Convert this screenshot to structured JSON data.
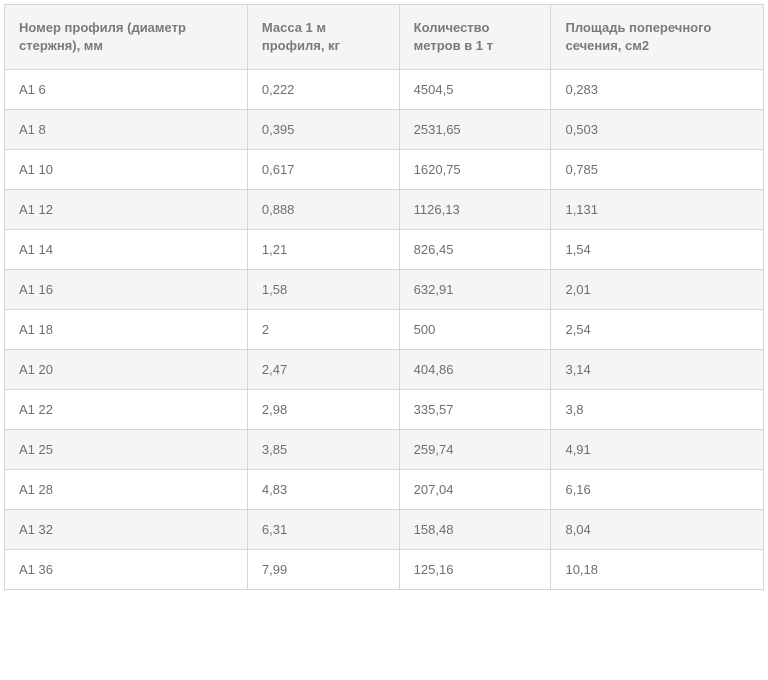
{
  "table": {
    "type": "table",
    "header_bg": "#f5f5f5",
    "row_bg_odd": "#ffffff",
    "row_bg_even": "#f5f5f5",
    "border_color": "#d6d6d6",
    "text_color": "#6f6f6f",
    "header_text_color": "#7a7a7a",
    "font_size": 13,
    "header_font_size": 13,
    "column_widths_pct": [
      32,
      20,
      20,
      28
    ],
    "columns": [
      "Номер профиля (диаметр стержня), мм",
      "Масса 1 м профиля, кг",
      "Количество метров в 1 т",
      "Площадь поперечного сечения, см2"
    ],
    "rows": [
      [
        "А1 6",
        "0,222",
        "4504,5",
        "0,283"
      ],
      [
        "А1 8",
        "0,395",
        "2531,65",
        "0,503"
      ],
      [
        "А1 10",
        "0,617",
        "1620,75",
        "0,785"
      ],
      [
        "А1 12",
        "0,888",
        "1126,13",
        "1,131"
      ],
      [
        "А1 14",
        "1,21",
        "826,45",
        "1,54"
      ],
      [
        "А1 16",
        "1,58",
        "632,91",
        "2,01"
      ],
      [
        "А1 18",
        "2",
        "500",
        "2,54"
      ],
      [
        "А1 20",
        "2,47",
        "404,86",
        "3,14"
      ],
      [
        "А1 22",
        "2,98",
        "335,57",
        "3,8"
      ],
      [
        "А1 25",
        "3,85",
        "259,74",
        "4,91"
      ],
      [
        "А1 28",
        "4,83",
        "207,04",
        "6,16"
      ],
      [
        "А1 32",
        "6,31",
        "158,48",
        "8,04"
      ],
      [
        "А1 36",
        "7,99",
        "125,16",
        "10,18"
      ]
    ]
  }
}
